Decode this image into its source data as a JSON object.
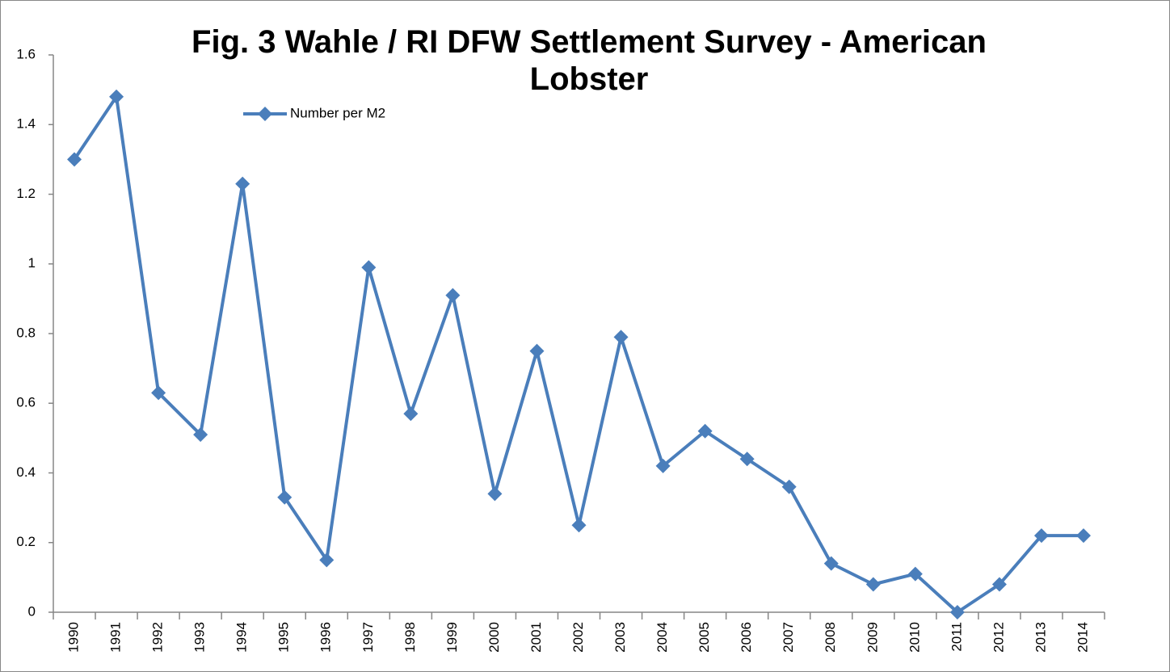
{
  "chart_data": {
    "type": "line",
    "title": "Fig. 3 Wahle / RI DFW Settlement Survey - American Lobster",
    "categories": [
      "1990",
      "1991",
      "1992",
      "1993",
      "1994",
      "1995",
      "1996",
      "1997",
      "1998",
      "1999",
      "2000",
      "2001",
      "2002",
      "2003",
      "2004",
      "2005",
      "2006",
      "2007",
      "2008",
      "2009",
      "2010",
      "2011",
      "2012",
      "2013",
      "2014"
    ],
    "series": [
      {
        "name": "Number per M2",
        "color": "#4a7ebb",
        "values": [
          1.3,
          1.48,
          0.63,
          0.51,
          1.23,
          0.33,
          0.15,
          0.99,
          0.57,
          0.91,
          0.34,
          0.75,
          0.25,
          0.79,
          0.42,
          0.52,
          0.44,
          0.36,
          0.14,
          0.08,
          0.11,
          0,
          0.08,
          0.22,
          0.22
        ]
      }
    ],
    "ylim": [
      0,
      1.6
    ],
    "yticks": [
      0,
      0.2,
      0.4,
      0.6,
      0.8,
      1,
      1.2,
      1.4,
      1.6
    ],
    "grid": false,
    "legend": "top-left"
  }
}
